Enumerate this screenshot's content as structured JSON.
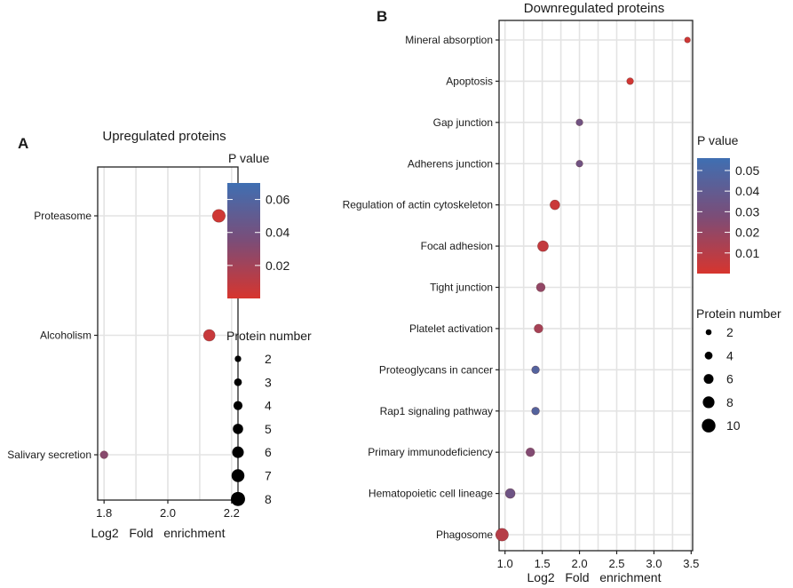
{
  "chart_data": [
    {
      "panel": "A",
      "type": "scatter",
      "title": "Upregulated proteins",
      "xlabel": "Log2   Fold   enrichment",
      "ylabel": "",
      "xlim": [
        1.78,
        2.22
      ],
      "x_ticks": [
        "1.8",
        "2.0",
        "2.2"
      ],
      "categories": [
        "Proteasome",
        "Alcoholism",
        "Salivary secretion"
      ],
      "points": [
        {
          "term": "Proteasome",
          "x": 2.16,
          "protein_number": 7,
          "p_value": 0.003
        },
        {
          "term": "Alcoholism",
          "x": 2.13,
          "protein_number": 6,
          "p_value": 0.006
        },
        {
          "term": "Salivary secretion",
          "x": 1.8,
          "protein_number": 3,
          "p_value": 0.03
        }
      ],
      "color_legend": {
        "title": "P value",
        "ticks": [
          "0.06",
          "0.04",
          "0.02"
        ],
        "range": [
          0,
          0.07
        ],
        "low_color": "#d7352e",
        "mid_color": "#7b4d78",
        "high_color": "#3f6fb2"
      },
      "size_legend": {
        "title": "Protein number",
        "values": [
          "2",
          "3",
          "4",
          "5",
          "6",
          "7",
          "8"
        ]
      }
    },
    {
      "panel": "B",
      "type": "scatter",
      "title": "Downregulated proteins",
      "xlabel": "Log2   Fold   enrichment",
      "ylabel": "",
      "xlim": [
        0.92,
        3.52
      ],
      "x_ticks": [
        "1.0",
        "1.5",
        "2.0",
        "2.5",
        "3.0",
        "3.5"
      ],
      "categories": [
        "Mineral absorption",
        "Apoptosis",
        "Gap junction",
        "Adherens junction",
        "Regulation of actin cytoskeleton",
        "Focal adhesion",
        "Tight junction",
        "Platelet activation",
        "Proteoglycans in cancer",
        "Rap1 signaling pathway",
        "Primary immunodeficiency",
        "Hematopoietic cell lineage",
        "Phagosome"
      ],
      "points": [
        {
          "term": "Mineral absorption",
          "x": 3.45,
          "protein_number": 2,
          "p_value": 0.003
        },
        {
          "term": "Apoptosis",
          "x": 2.68,
          "protein_number": 3,
          "p_value": 0.002
        },
        {
          "term": "Gap junction",
          "x": 2.0,
          "protein_number": 3,
          "p_value": 0.033
        },
        {
          "term": "Adherens junction",
          "x": 2.0,
          "protein_number": 3,
          "p_value": 0.033
        },
        {
          "term": "Regulation of actin cytoskeleton",
          "x": 1.67,
          "protein_number": 6,
          "p_value": 0.004
        },
        {
          "term": "Focal adhesion",
          "x": 1.51,
          "protein_number": 7,
          "p_value": 0.006
        },
        {
          "term": "Tight junction",
          "x": 1.48,
          "protein_number": 5,
          "p_value": 0.021
        },
        {
          "term": "Platelet activation",
          "x": 1.45,
          "protein_number": 5,
          "p_value": 0.015
        },
        {
          "term": "Proteoglycans in cancer",
          "x": 1.41,
          "protein_number": 4,
          "p_value": 0.046
        },
        {
          "term": "Rap1 signaling pathway",
          "x": 1.41,
          "protein_number": 4,
          "p_value": 0.046
        },
        {
          "term": "Primary immunodeficiency",
          "x": 1.34,
          "protein_number": 5,
          "p_value": 0.026
        },
        {
          "term": "Hematopoietic cell lineage",
          "x": 1.07,
          "protein_number": 6,
          "p_value": 0.034
        },
        {
          "term": "Phagosome",
          "x": 0.96,
          "protein_number": 9,
          "p_value": 0.01
        }
      ],
      "color_legend": {
        "title": "P value",
        "ticks": [
          "0.05",
          "0.04",
          "0.03",
          "0.02",
          "0.01"
        ],
        "range": [
          0,
          0.056
        ],
        "low_color": "#d7352e",
        "mid_color": "#7b4d78",
        "high_color": "#3f6fb2"
      },
      "size_legend": {
        "title": "Protein number",
        "values": [
          "2",
          "4",
          "6",
          "8",
          "10"
        ]
      }
    }
  ]
}
